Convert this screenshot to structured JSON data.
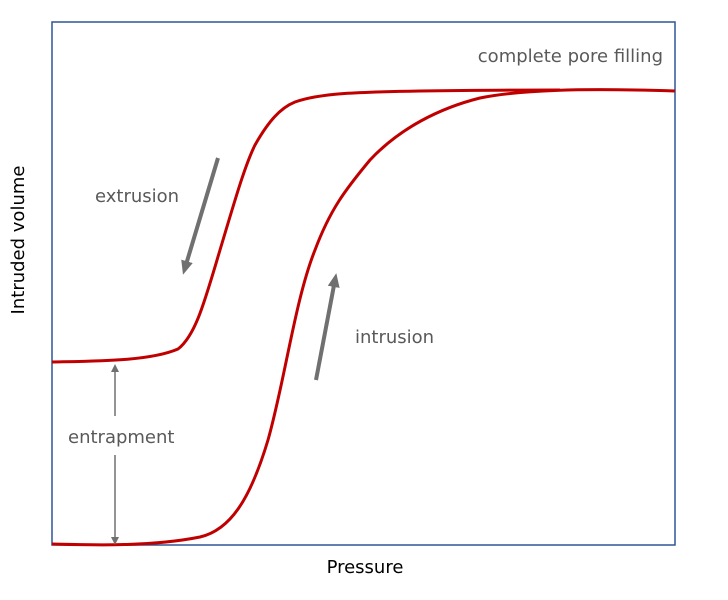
{
  "diagram": {
    "x_axis_label": "Pressure",
    "y_axis_label": "Intruded volume",
    "annotations": {
      "top": "complete pore filling",
      "extrusion": "extrusion",
      "intrusion": "intrusion",
      "entrapment": "entrapment"
    },
    "colors": {
      "curve": "#c00000",
      "frame": "#2f5597",
      "arrow": "#707070",
      "label": "#595959"
    }
  }
}
